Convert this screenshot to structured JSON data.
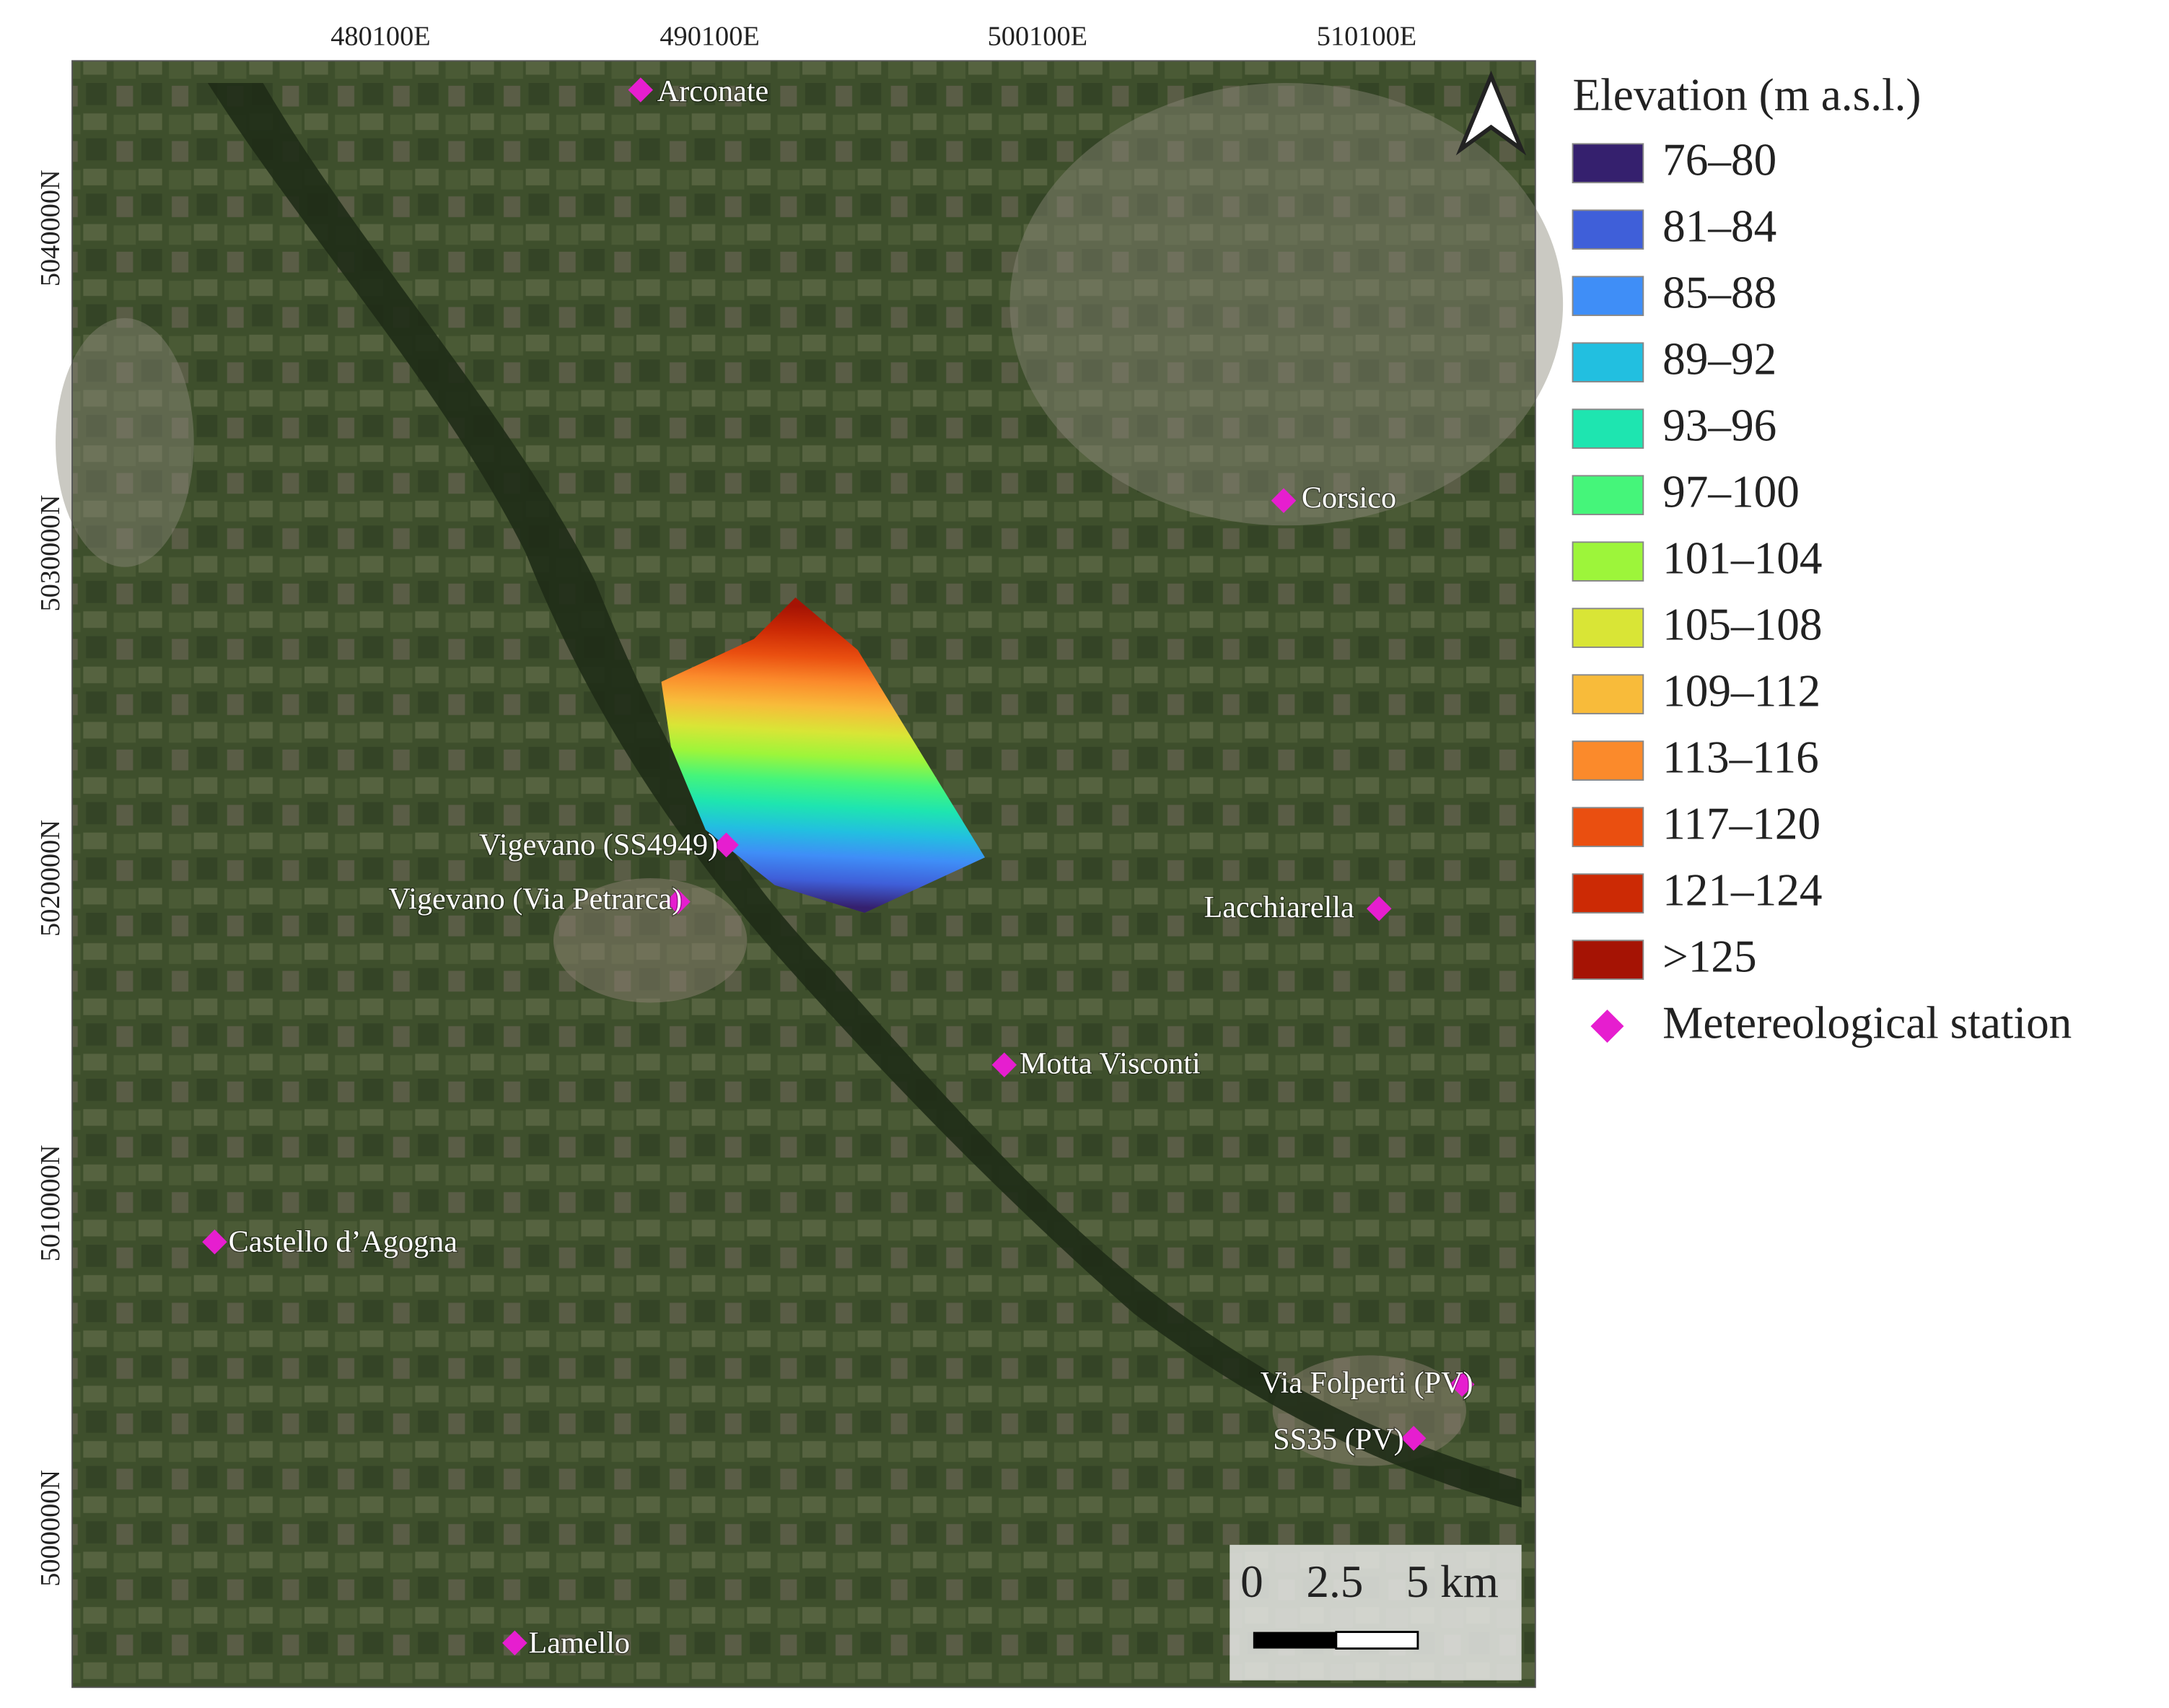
{
  "map": {
    "x_labels": [
      "480100E",
      "490100E",
      "500100E",
      "510100E"
    ],
    "y_labels": [
      "5040000N",
      "5030000N",
      "5020000N",
      "5010000N",
      "5000000N"
    ],
    "stations": [
      {
        "label": "Arconate"
      },
      {
        "label": "Corsico"
      },
      {
        "label": "Vigevano (SS4949)"
      },
      {
        "label": "Vigevano (Via Petrarca)"
      },
      {
        "label": "Lacchiarella"
      },
      {
        "label": "Motta Visconti"
      },
      {
        "label": "Castello d’Agogna"
      },
      {
        "label": "Via Folperti (PV)"
      },
      {
        "label": "SS35 (PV)"
      },
      {
        "label": "Lamello"
      }
    ],
    "station_color": "#e61ecf",
    "legend": {
      "title": "Elevation (m a.s.l.)",
      "classes": [
        {
          "label": "76–80",
          "color": "#35206e"
        },
        {
          "label": "81–84",
          "color": "#3f5fd9"
        },
        {
          "label": "85–88",
          "color": "#3f8ef7"
        },
        {
          "label": "89–92",
          "color": "#22bfe0"
        },
        {
          "label": "93–96",
          "color": "#1ee5b0"
        },
        {
          "label": "97–100",
          "color": "#45f57a"
        },
        {
          "label": "101–104",
          "color": "#9df53a"
        },
        {
          "label": "105–108",
          "color": "#d9e536"
        },
        {
          "label": "109–112",
          "color": "#f8bb3a"
        },
        {
          "label": "113–116",
          "color": "#fb8a2b"
        },
        {
          "label": "117–120",
          "color": "#ea4f10"
        },
        {
          "label": "121–124",
          "color": "#cc2a05"
        },
        {
          "label": ">125",
          "color": "#a51304"
        }
      ],
      "station_label": "Metereological station"
    },
    "scale_bar": {
      "labels": [
        "0",
        "2.5",
        "5 km"
      ]
    }
  }
}
